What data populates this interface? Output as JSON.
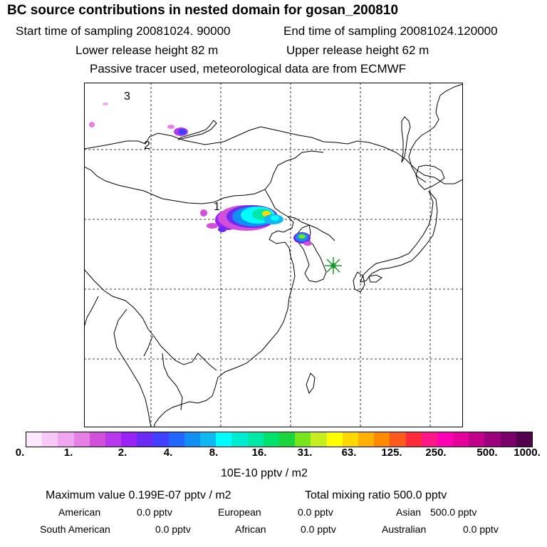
{
  "header": {
    "title": "BC  source contributions in nested domain for gosan_200810",
    "start_label": "Start time of sampling 20081024. 90000",
    "end_label": "End time of sampling 20081024.120000",
    "lower_label": "Lower release height   82 m",
    "upper_label": "Upper release height   62 m",
    "tracer_note": "Passive tracer used, meteorological data are from ECMWF"
  },
  "map": {
    "labels": [
      "1",
      "2",
      "3"
    ],
    "receptor_marker": "star-icon",
    "colors": {
      "coast": "#000000",
      "grid": "#000000",
      "receptor": "#1a9a2a"
    }
  },
  "colorbar": {
    "colors": [
      "#fde8fd",
      "#f8c8f8",
      "#f0a6f0",
      "#e67fe6",
      "#d24fdc",
      "#b838ee",
      "#9a22f6",
      "#6a2cf4",
      "#4040ff",
      "#2266ff",
      "#1190f4",
      "#0fb8f0",
      "#00fcfc",
      "#00ecd2",
      "#00e8a8",
      "#00e26c",
      "#1ad63a",
      "#78e41c",
      "#c6ee1e",
      "#ffff00",
      "#ffd800",
      "#ffb000",
      "#ff8a00",
      "#ff5a1e",
      "#ff2a3a",
      "#ff1688",
      "#ff00b4",
      "#e6009c",
      "#c00088",
      "#9c007c",
      "#7a006a",
      "#52004e"
    ],
    "tick_labels": [
      "0.",
      "1.",
      "2.",
      "4.",
      "8.",
      "16.",
      "31.",
      "63.",
      "125.",
      "250.",
      "500.",
      "1000."
    ],
    "unit": "10E-10 pptv / m2"
  },
  "stats": {
    "max_value": "Maximum value  0.199E-07 pptv / m2",
    "total": "Total mixing ratio      500.0 pptv",
    "american": "American",
    "american_val": "0.0 pptv",
    "european": "European",
    "european_val": "0.0 pptv",
    "asian": "Asian",
    "asian_val": "500.0 pptv",
    "south_american": "South American",
    "south_american_val": "0.0 pptv",
    "african": "African",
    "african_val": "0.0 pptv",
    "australian": "Australian",
    "australian_val": "0.0 pptv"
  }
}
